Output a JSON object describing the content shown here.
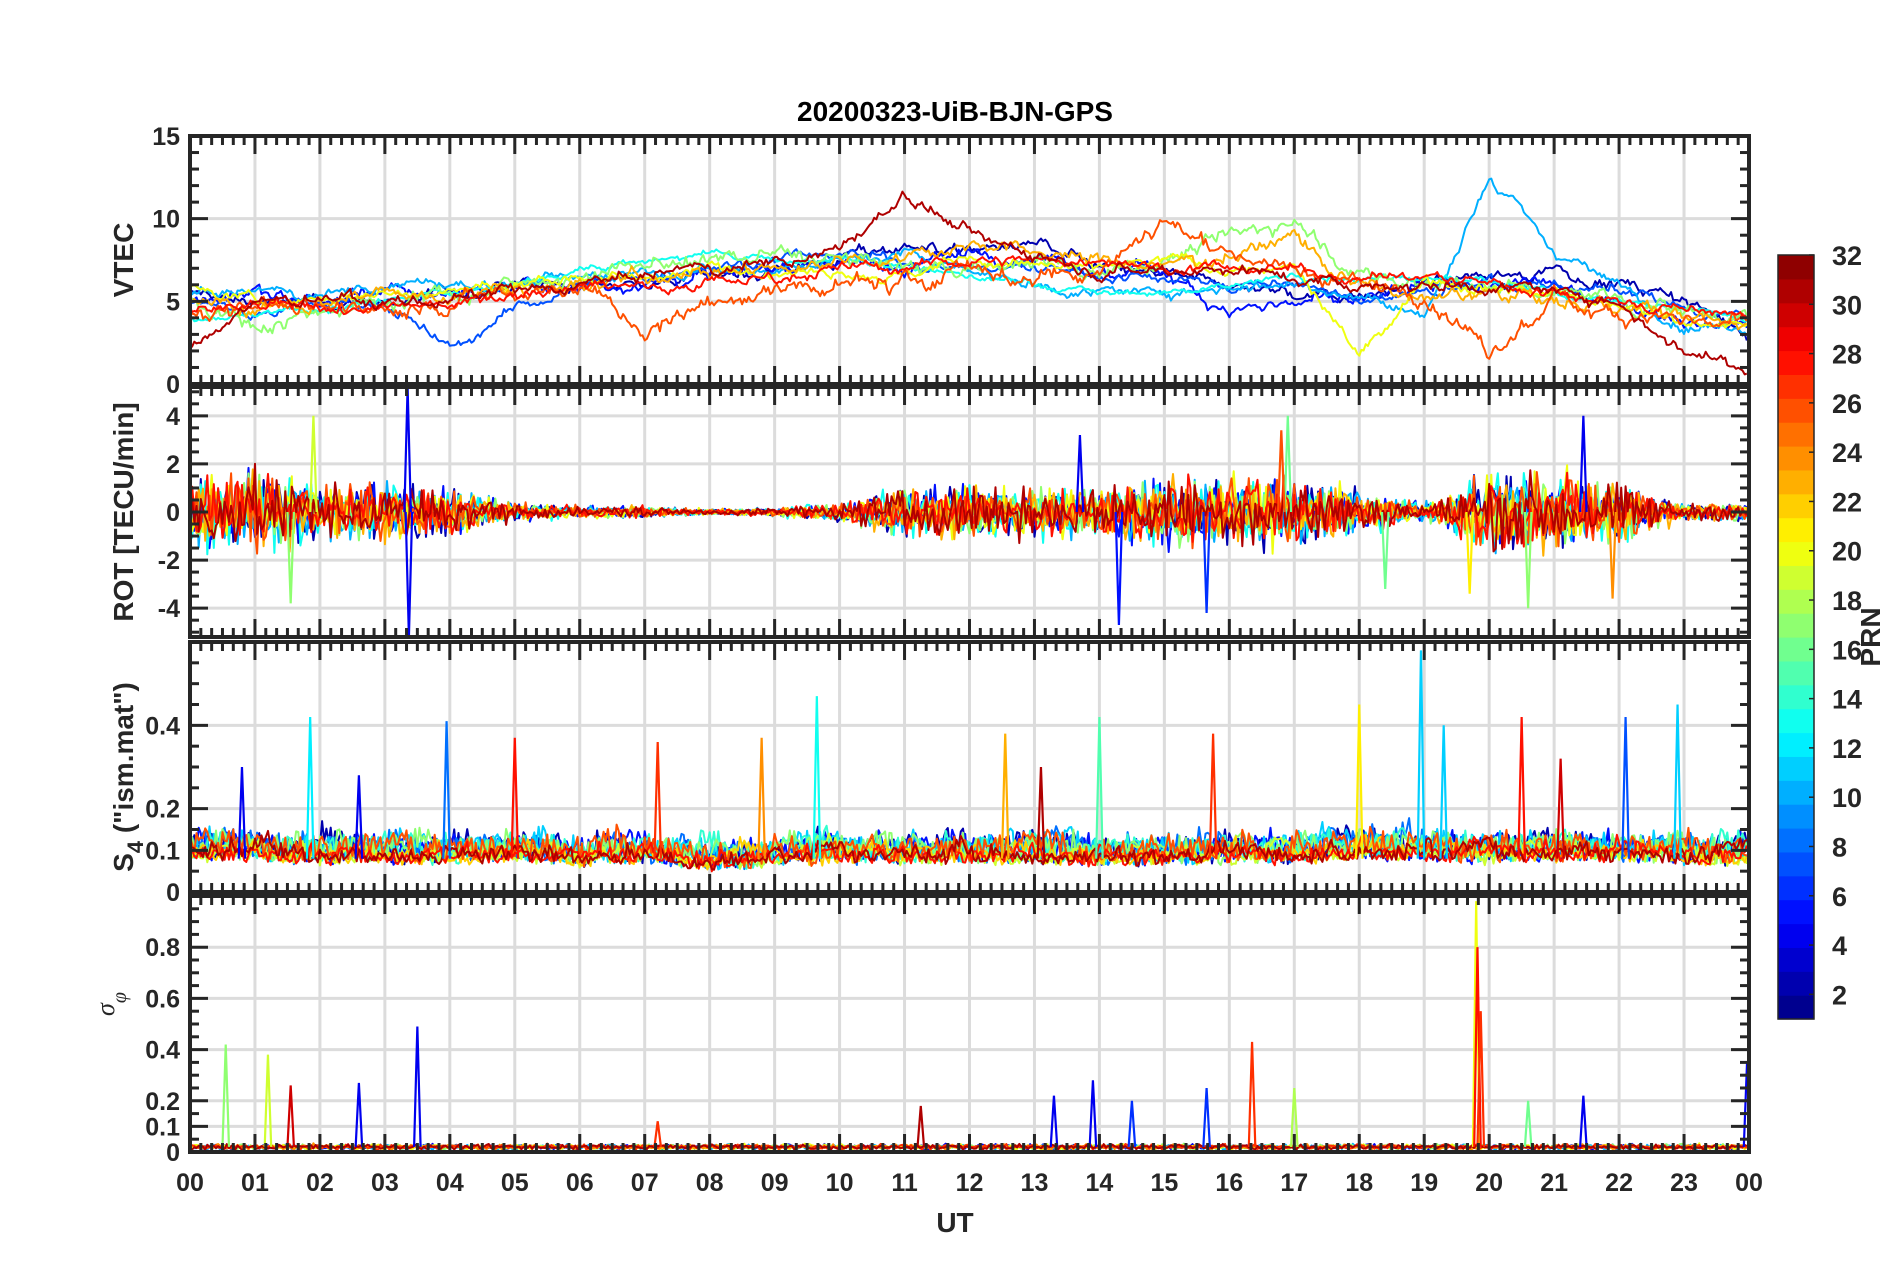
{
  "chart_data": {
    "type": "line",
    "title": "20200323-UiB-BJN-GPS",
    "xlabel": "UT",
    "xlim": [
      0,
      24
    ],
    "x_tick_labels": [
      "00",
      "01",
      "02",
      "03",
      "04",
      "05",
      "06",
      "07",
      "08",
      "09",
      "10",
      "11",
      "12",
      "13",
      "14",
      "15",
      "16",
      "17",
      "18",
      "19",
      "20",
      "21",
      "22",
      "23",
      "00"
    ],
    "grid": true,
    "colorbar": {
      "label": "PRN",
      "range": [
        1,
        32
      ],
      "colormap": "jet",
      "tick_labels": [
        "2",
        "4",
        "6",
        "8",
        "10",
        "12",
        "14",
        "16",
        "18",
        "20",
        "22",
        "24",
        "26",
        "28",
        "30",
        "32"
      ],
      "tick_values": [
        2,
        4,
        6,
        8,
        10,
        12,
        14,
        16,
        18,
        20,
        22,
        24,
        26,
        28,
        30,
        32
      ]
    },
    "panels": [
      {
        "id": "vtec",
        "ylabel": "VTEC",
        "ylim": [
          0,
          15
        ],
        "y_ticks": [
          0,
          5,
          10,
          15
        ],
        "y_tick_labels": [
          "0",
          "5",
          "10",
          "15"
        ],
        "series_note": "hourly values 00..24 UT, null = no data",
        "series": [
          {
            "prn": 2,
            "noise": 0.35,
            "values": [
              5.5,
              5,
              4.8,
              5,
              5.5,
              5.8,
              6,
              6.2,
              6.5,
              7,
              7.5,
              8.5,
              8,
              8.5,
              7,
              6.5,
              6,
              5.5,
              5.5,
              6,
              6.5,
              7,
              6,
              5,
              3
            ]
          },
          {
            "prn": 5,
            "noise": 0.4,
            "values": [
              5,
              5.5,
              5,
              5.5,
              5.5,
              6,
              6,
              6.2,
              6.5,
              7,
              7.5,
              7,
              8,
              7.5,
              6.5,
              7,
              4.5,
              5,
              5,
              5.5,
              6,
              6,
              5,
              4,
              3.5
            ]
          },
          {
            "prn": 7,
            "noise": 0.3,
            "values": [
              5,
              4.5,
              5,
              5,
              2,
              4.5,
              6,
              6.5,
              7,
              7.5,
              8,
              7.5,
              7,
              7,
              6.5,
              6.5,
              6,
              6,
              5,
              5.5,
              6,
              6,
              5.5,
              4.5,
              4
            ]
          },
          {
            "prn": 10,
            "noise": 0.3,
            "values": [
              5.5,
              5.5,
              5.5,
              6,
              6,
              6,
              6.5,
              7,
              7,
              7,
              7.5,
              8,
              7,
              6,
              5.5,
              5.5,
              6,
              6,
              5.5,
              4,
              12.5,
              8,
              6,
              3.5,
              3.5
            ]
          },
          {
            "prn": 13,
            "noise": 0.2,
            "values": [
              4,
              4.2,
              4.5,
              5,
              5.5,
              6,
              7,
              7.5,
              7.8,
              7.5,
              7.5,
              7,
              6.5,
              6,
              5.5,
              5.5,
              6,
              6.5,
              6.5,
              6.5,
              6,
              5.5,
              5,
              4.5,
              4
            ]
          },
          {
            "prn": 17,
            "noise": 0.45,
            "values": [
              5,
              3.5,
              4.5,
              5,
              5.5,
              6,
              6.5,
              7,
              7.5,
              7.8,
              7.5,
              7,
              7,
              7.5,
              7,
              7.5,
              9,
              10,
              6.5,
              6,
              6,
              5.5,
              5,
              4.5,
              4
            ]
          },
          {
            "prn": 20,
            "noise": 0.3,
            "values": [
              6,
              5,
              5,
              5.5,
              5.5,
              6,
              6.5,
              6.5,
              7,
              7,
              7,
              6.5,
              7.5,
              7,
              7,
              7.5,
              7,
              7,
              1.5,
              6.5,
              6,
              5.5,
              4.5,
              4,
              3.5
            ]
          },
          {
            "prn": 23,
            "noise": 0.4,
            "values": [
              5,
              4.5,
              5,
              5.5,
              5.5,
              6,
              6,
              6.5,
              7,
              7,
              7.5,
              8,
              8.5,
              8,
              7.5,
              7,
              8,
              9,
              6,
              5,
              5.5,
              5,
              4.5,
              4,
              3.5
            ]
          },
          {
            "prn": 26,
            "noise": 0.5,
            "values": [
              4.5,
              5,
              4.5,
              4.5,
              5,
              5.5,
              6,
              3,
              5,
              5.5,
              6,
              6,
              7,
              6.5,
              7,
              10,
              8,
              7,
              6,
              5.5,
              1.5,
              5,
              4.5,
              4,
              3.5
            ]
          },
          {
            "prn": 28,
            "noise": 0.3,
            "values": [
              4.5,
              4.5,
              4.5,
              4.5,
              5,
              5.5,
              6,
              6,
              6.2,
              6.5,
              7,
              7,
              7.5,
              7.5,
              7.5,
              7,
              7,
              7,
              6.5,
              6.5,
              6,
              5.5,
              5,
              4.5,
              4
            ]
          },
          {
            "prn": 31,
            "noise": 0.35,
            "values": [
              2,
              5,
              5,
              5,
              5,
              5.5,
              6,
              6.5,
              7,
              7.5,
              8,
              11.5,
              9,
              8,
              7,
              7,
              7,
              6.5,
              6,
              6,
              6,
              5.5,
              5,
              2,
              1
            ]
          }
        ]
      },
      {
        "id": "rot",
        "ylabel": "ROT [TECU/min]",
        "ylim": [
          -5.2,
          5.2
        ],
        "y_ticks": [
          -4,
          -2,
          0,
          2,
          4
        ],
        "y_tick_labels": [
          "-4",
          "-2",
          "0",
          "2",
          "4"
        ],
        "activity_envelope_hourly": [
          1.2,
          1.4,
          0.9,
          1,
          0.8,
          0.3,
          0.2,
          0.2,
          0.1,
          0.15,
          0.3,
          0.9,
          0.9,
          0.9,
          0.8,
          1.2,
          1.1,
          1.2,
          0.8,
          0.3,
          1.3,
          1.4,
          1.0,
          0.3,
          0.3
        ],
        "series_prns": [
          2,
          5,
          10,
          13,
          17,
          20,
          23,
          26,
          28,
          31
        ],
        "spikes": [
          {
            "prn": 4,
            "t": 3.35,
            "value": 5.2
          },
          {
            "prn": 4,
            "t": 3.37,
            "value": -5.2
          },
          {
            "prn": 17,
            "t": 1.55,
            "value": -3.8
          },
          {
            "prn": 19,
            "t": 1.9,
            "value": 4.0
          },
          {
            "prn": 5,
            "t": 14.3,
            "value": -4.7
          },
          {
            "prn": 6,
            "t": 15.65,
            "value": -4.2
          },
          {
            "prn": 16,
            "t": 16.9,
            "value": 4.0
          },
          {
            "prn": 21,
            "t": 19.7,
            "value": -3.4
          },
          {
            "prn": 4,
            "t": 21.45,
            "value": 4.0
          },
          {
            "prn": 24,
            "t": 21.9,
            "value": -3.6
          },
          {
            "prn": 17,
            "t": 20.6,
            "value": -4.0
          },
          {
            "prn": 4,
            "t": 13.7,
            "value": 3.2
          },
          {
            "prn": 26,
            "t": 16.8,
            "value": 3.4
          },
          {
            "prn": 16,
            "t": 18.4,
            "value": -3.2
          }
        ]
      },
      {
        "id": "s4",
        "ylabel": "S4 (\"ism.mat\")",
        "ylabel_main": "S",
        "ylabel_sub": "4",
        "ylabel_rest": " (\"ism.mat\")",
        "ylim": [
          0,
          0.6
        ],
        "y_ticks": [
          0,
          0.1,
          0.2,
          0.4
        ],
        "y_tick_labels": [
          "0",
          "0.1",
          "0.2",
          "0.4"
        ],
        "baseline_hourly": [
          0.1,
          0.1,
          0.09,
          0.09,
          0.09,
          0.1,
          0.08,
          0.09,
          0.07,
          0.08,
          0.09,
          0.09,
          0.09,
          0.09,
          0.08,
          0.09,
          0.09,
          0.09,
          0.1,
          0.1,
          0.09,
          0.1,
          0.1,
          0.09,
          0.08
        ],
        "series_prns": [
          2,
          5,
          8,
          11,
          14,
          17,
          19,
          22,
          26,
          28,
          31
        ],
        "spikes": [
          {
            "prn": 4,
            "t": 0.8,
            "value": 0.3
          },
          {
            "prn": 12,
            "t": 1.85,
            "value": 0.42
          },
          {
            "prn": 4,
            "t": 2.6,
            "value": 0.28
          },
          {
            "prn": 8,
            "t": 3.95,
            "value": 0.41
          },
          {
            "prn": 28,
            "t": 5.0,
            "value": 0.37
          },
          {
            "prn": 27,
            "t": 7.2,
            "value": 0.36
          },
          {
            "prn": 24,
            "t": 8.8,
            "value": 0.37
          },
          {
            "prn": 13,
            "t": 9.65,
            "value": 0.47
          },
          {
            "prn": 23,
            "t": 12.55,
            "value": 0.38
          },
          {
            "prn": 15,
            "t": 14.0,
            "value": 0.42
          },
          {
            "prn": 27,
            "t": 15.75,
            "value": 0.38
          },
          {
            "prn": 21,
            "t": 18.0,
            "value": 0.45
          },
          {
            "prn": 11,
            "t": 18.95,
            "value": 0.58
          },
          {
            "prn": 11,
            "t": 19.3,
            "value": 0.4
          },
          {
            "prn": 28,
            "t": 20.5,
            "value": 0.42
          },
          {
            "prn": 7,
            "t": 22.1,
            "value": 0.42
          },
          {
            "prn": 11,
            "t": 22.9,
            "value": 0.45
          },
          {
            "prn": 31,
            "t": 13.1,
            "value": 0.3
          },
          {
            "prn": 30,
            "t": 21.1,
            "value": 0.32
          }
        ]
      },
      {
        "id": "sigma",
        "ylabel": "σφ",
        "ylabel_main": "σ",
        "ylabel_sub": "φ",
        "ylim": [
          0,
          1
        ],
        "y_ticks": [
          0,
          0.1,
          0.2,
          0.4,
          0.6,
          0.8
        ],
        "y_tick_labels": [
          "0",
          "0.1",
          "0.2",
          "0.4",
          "0.6",
          "0.8"
        ],
        "baseline": 0.02,
        "series_prns": [
          4,
          10,
          17,
          20,
          24,
          27,
          31
        ],
        "spikes": [
          {
            "prn": 17,
            "t": 0.55,
            "value": 0.42
          },
          {
            "prn": 19,
            "t": 1.2,
            "value": 0.38
          },
          {
            "prn": 30,
            "t": 1.55,
            "value": 0.26
          },
          {
            "prn": 4,
            "t": 2.6,
            "value": 0.27
          },
          {
            "prn": 4,
            "t": 3.5,
            "value": 0.49
          },
          {
            "prn": 27,
            "t": 7.2,
            "value": 0.12
          },
          {
            "prn": 31,
            "t": 11.25,
            "value": 0.18
          },
          {
            "prn": 4,
            "t": 13.3,
            "value": 0.22
          },
          {
            "prn": 4,
            "t": 13.9,
            "value": 0.28
          },
          {
            "prn": 6,
            "t": 14.5,
            "value": 0.2
          },
          {
            "prn": 6,
            "t": 15.65,
            "value": 0.25
          },
          {
            "prn": 27,
            "t": 16.35,
            "value": 0.43
          },
          {
            "prn": 18,
            "t": 17.0,
            "value": 0.25
          },
          {
            "prn": 20,
            "t": 19.8,
            "value": 0.98
          },
          {
            "prn": 28,
            "t": 19.82,
            "value": 0.8
          },
          {
            "prn": 27,
            "t": 19.87,
            "value": 0.55
          },
          {
            "prn": 16,
            "t": 20.6,
            "value": 0.2
          },
          {
            "prn": 4,
            "t": 21.45,
            "value": 0.22
          },
          {
            "prn": 4,
            "t": 23.97,
            "value": 0.35
          }
        ]
      }
    ]
  }
}
